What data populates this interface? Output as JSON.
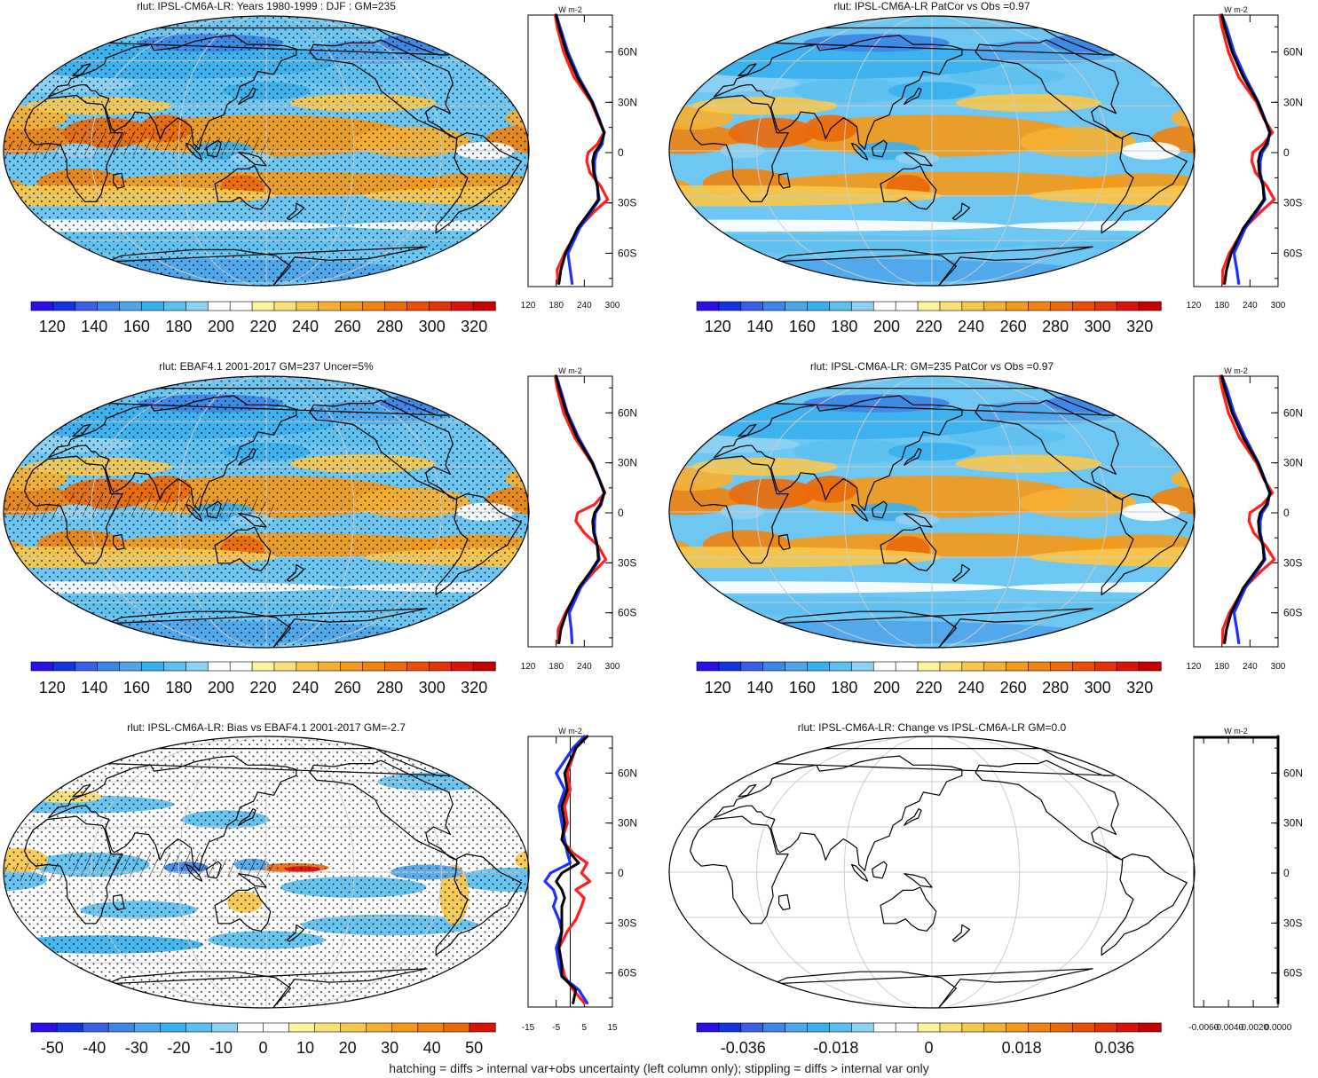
{
  "footer_note": "hatching = diffs > internal var+obs uncertainty (left column only); stippling = diffs > internal var only",
  "chart_data": [
    {
      "type": "heatmap",
      "title": "rlut: IPSL-CM6A-LR: Years 1980-1999 : DJF : GM=235",
      "colorbar_ticks": [
        "120",
        "140",
        "160",
        "180",
        "200",
        "220",
        "240",
        "260",
        "280",
        "300",
        "320"
      ],
      "colorbar_range": [
        110,
        330
      ],
      "zonal_profile": {
        "type": "line",
        "unit_label": "W m-2",
        "xticks": [
          "120",
          "180",
          "240",
          "300"
        ],
        "xlim": [
          120,
          300
        ],
        "yticks": [
          "60N",
          "30N",
          "0",
          "30S",
          "60S"
        ],
        "series": [
          {
            "name": "red",
            "color": "#ff1f1f",
            "lat": [
              82,
              75,
              60,
              45,
              30,
              20,
              12,
              5,
              0,
              -5,
              -12,
              -20,
              -28,
              -35,
              -45,
              -60,
              -70,
              -78
            ],
            "values": [
              178,
              182,
              196,
              218,
              255,
              270,
              282,
              268,
              248,
              245,
              252,
              275,
              290,
              262,
              228,
              198,
              182,
              184
            ]
          },
          {
            "name": "blue",
            "color": "#1f2fff",
            "lat": [
              82,
              75,
              60,
              45,
              30,
              20,
              12,
              5,
              0,
              -5,
              -12,
              -20,
              -28,
              -35,
              -45,
              -60,
              -70,
              -78
            ],
            "values": [
              180,
              188,
              205,
              228,
              258,
              272,
              282,
              278,
              266,
              262,
              262,
              268,
              272,
              255,
              230,
              205,
              210,
              214
            ]
          },
          {
            "name": "black",
            "color": "#000000",
            "lat": [
              82,
              75,
              60,
              45,
              30,
              20,
              12,
              5,
              0,
              -5,
              -12,
              -20,
              -28,
              -35,
              -45,
              -60,
              -70,
              -78
            ],
            "values": [
              180,
              186,
              202,
              225,
              257,
              271,
              283,
              275,
              262,
              258,
              260,
              268,
              270,
              252,
              226,
              200,
              190,
              186
            ]
          }
        ]
      }
    },
    {
      "type": "heatmap",
      "title": "rlut: IPSL-CM6A-LR PatCor vs Obs =0.97",
      "colorbar_ticks": [
        "120",
        "140",
        "160",
        "180",
        "200",
        "220",
        "240",
        "260",
        "280",
        "300",
        "320"
      ],
      "colorbar_range": [
        110,
        330
      ],
      "zonal_profile": {
        "type": "line",
        "unit_label": "W m-2",
        "xticks": [
          "120",
          "180",
          "240",
          "300"
        ],
        "xlim": [
          120,
          300
        ],
        "yticks": [
          "60N",
          "30N",
          "0",
          "30S",
          "60S"
        ],
        "series": [
          {
            "name": "red",
            "color": "#ff1f1f",
            "lat": [
              82,
              75,
              60,
              45,
              30,
              20,
              12,
              5,
              0,
              -5,
              -12,
              -20,
              -28,
              -35,
              -45,
              -60,
              -70,
              -78
            ],
            "values": [
              176,
              180,
              194,
              216,
              254,
              270,
              288,
              268,
              246,
              244,
              252,
              276,
              292,
              264,
              228,
              196,
              182,
              182
            ]
          },
          {
            "name": "blue",
            "color": "#1f2fff",
            "lat": [
              82,
              75,
              60,
              45,
              30,
              20,
              12,
              5,
              0,
              -5,
              -12,
              -20,
              -28,
              -35,
              -45,
              -60,
              -70,
              -78
            ],
            "values": [
              180,
              190,
              206,
              230,
              258,
              272,
              282,
              278,
              266,
              262,
              262,
              268,
              272,
              255,
              230,
              206,
              212,
              216
            ]
          },
          {
            "name": "black",
            "color": "#000000",
            "lat": [
              82,
              75,
              60,
              45,
              30,
              20,
              12,
              5,
              0,
              -5,
              -12,
              -20,
              -28,
              -35,
              -45,
              -60,
              -70,
              -78
            ],
            "values": [
              180,
              186,
              202,
              226,
              257,
              271,
              283,
              275,
              262,
              258,
              260,
              268,
              270,
              252,
              226,
              200,
              190,
              186
            ]
          }
        ]
      }
    },
    {
      "type": "heatmap",
      "title": "rlut: EBAF4.1 2001-2017 GM=237 Uncer=5%",
      "colorbar_ticks": [
        "120",
        "140",
        "160",
        "180",
        "200",
        "220",
        "240",
        "260",
        "280",
        "300",
        "320"
      ],
      "colorbar_range": [
        110,
        330
      ],
      "zonal_profile": {
        "type": "line",
        "unit_label": "W m-2",
        "xticks": [
          "120",
          "180",
          "240",
          "300"
        ],
        "xlim": [
          120,
          300
        ],
        "yticks": [
          "60N",
          "30N",
          "0",
          "30S",
          "60S"
        ],
        "series": [
          {
            "name": "red",
            "color": "#ff1f1f",
            "lat": [
              82,
              75,
              60,
              45,
              30,
              20,
              12,
              5,
              0,
              -5,
              -12,
              -20,
              -28,
              -35,
              -45,
              -60,
              -70,
              -78
            ],
            "values": [
              178,
              182,
              196,
              220,
              256,
              272,
              284,
              262,
              226,
              222,
              240,
              270,
              286,
              262,
              230,
              200,
              184,
              184
            ]
          },
          {
            "name": "blue",
            "color": "#1f2fff",
            "lat": [
              82,
              75,
              60,
              45,
              30,
              20,
              12,
              5,
              0,
              -5,
              -12,
              -20,
              -28,
              -35,
              -45,
              -60,
              -70,
              -78
            ],
            "values": [
              180,
              188,
              204,
              228,
              258,
              272,
              282,
              276,
              264,
              262,
              262,
              268,
              272,
              256,
              232,
              208,
              212,
              214
            ]
          },
          {
            "name": "black",
            "color": "#000000",
            "lat": [
              82,
              75,
              60,
              45,
              30,
              20,
              12,
              5,
              0,
              -5,
              -12,
              -20,
              -28,
              -35,
              -45,
              -60,
              -70,
              -78
            ],
            "values": [
              180,
              186,
              202,
              225,
              257,
              272,
              283,
              274,
              262,
              258,
              260,
              268,
              270,
              254,
              228,
              202,
              190,
              186
            ]
          }
        ]
      }
    },
    {
      "type": "heatmap",
      "title": "rlut: IPSL-CM6A-LR: GM=235 PatCor vs Obs =0.97",
      "colorbar_ticks": [
        "120",
        "140",
        "160",
        "180",
        "200",
        "220",
        "240",
        "260",
        "280",
        "300",
        "320"
      ],
      "colorbar_range": [
        110,
        330
      ],
      "zonal_profile": {
        "type": "line",
        "unit_label": "W m-2",
        "xticks": [
          "120",
          "180",
          "240",
          "300"
        ],
        "xlim": [
          120,
          300
        ],
        "yticks": [
          "60N",
          "30N",
          "0",
          "30S",
          "60S"
        ],
        "series": [
          {
            "name": "red",
            "color": "#ff1f1f",
            "lat": [
              82,
              75,
              60,
              45,
              30,
              20,
              12,
              5,
              0,
              -5,
              -12,
              -20,
              -28,
              -35,
              -45,
              -60,
              -70,
              -78
            ],
            "values": [
              176,
              180,
              194,
              218,
              254,
              270,
              288,
              266,
              240,
              238,
              248,
              274,
              292,
              264,
              228,
              196,
              182,
              182
            ]
          },
          {
            "name": "blue",
            "color": "#1f2fff",
            "lat": [
              82,
              75,
              60,
              45,
              30,
              20,
              12,
              5,
              0,
              -5,
              -12,
              -20,
              -28,
              -35,
              -45,
              -60,
              -70,
              -78
            ],
            "values": [
              180,
              190,
              206,
              230,
              258,
              272,
              282,
              278,
              266,
              262,
              262,
              268,
              272,
              255,
              230,
              206,
              212,
              216
            ]
          },
          {
            "name": "black",
            "color": "#000000",
            "lat": [
              82,
              75,
              60,
              45,
              30,
              20,
              12,
              5,
              0,
              -5,
              -12,
              -20,
              -28,
              -35,
              -45,
              -60,
              -70,
              -78
            ],
            "values": [
              180,
              186,
              202,
              226,
              257,
              271,
              283,
              275,
              262,
              258,
              260,
              268,
              270,
              252,
              226,
              200,
              190,
              186
            ]
          }
        ]
      }
    },
    {
      "type": "heatmap",
      "title": "rlut: IPSL-CM6A-LR: Bias vs EBAF4.1 2001-2017 GM=-2.7",
      "colorbar_ticks": [
        "-50",
        "-40",
        "-30",
        "-20",
        "-10",
        "0",
        "10",
        "20",
        "30",
        "40",
        "50"
      ],
      "colorbar_range": [
        -55,
        55
      ],
      "zonal_profile": {
        "type": "line",
        "unit_label": "W m-2",
        "xticks": [
          "-15",
          "-5",
          "5",
          "15"
        ],
        "xlim": [
          -15,
          15
        ],
        "yticks": [
          "60N",
          "30N",
          "0",
          "30S",
          "60S"
        ],
        "series": [
          {
            "name": "red",
            "color": "#ff1f1f",
            "lat": [
              82,
              75,
              60,
              50,
              40,
              30,
              20,
              12,
              6,
              0,
              -5,
              -10,
              -15,
              -20,
              -28,
              -35,
              -45,
              -55,
              -62,
              -70,
              -78
            ],
            "values": [
              6,
              2,
              -1,
              0,
              -2,
              -1,
              -3,
              1,
              6,
              4,
              7,
              2,
              5,
              4,
              2,
              -1,
              -4,
              -3,
              -2,
              1,
              5
            ]
          },
          {
            "name": "blue",
            "color": "#1f2fff",
            "lat": [
              82,
              75,
              60,
              50,
              40,
              30,
              20,
              12,
              6,
              0,
              -5,
              -10,
              -15,
              -20,
              -28,
              -35,
              -45,
              -55,
              -62,
              -70,
              -78
            ],
            "values": [
              5,
              1,
              -5,
              -2,
              -4,
              -3,
              -2,
              -1,
              0,
              -7,
              -9,
              -6,
              -5,
              -6,
              -4,
              -3,
              -5,
              -4,
              -3,
              3,
              6
            ]
          },
          {
            "name": "black",
            "color": "#000000",
            "lat": [
              82,
              75,
              60,
              50,
              40,
              30,
              20,
              12,
              6,
              0,
              -5,
              -10,
              -15,
              -20,
              -28,
              -35,
              -45,
              -55,
              -62,
              -70,
              -78
            ],
            "values": [
              6,
              2,
              -2,
              -1,
              -3,
              -2,
              -3,
              0,
              3,
              -3,
              -5,
              -3,
              -2,
              -3,
              -3,
              -3,
              -4,
              -3,
              -3,
              2,
              1
            ]
          }
        ]
      }
    },
    {
      "type": "heatmap",
      "title": "rlut: IPSL-CM6A-LR: Change vs IPSL-CM6A-LR GM=0.0",
      "colorbar_ticks": [
        "-0.036",
        "-0.018",
        "0",
        "0.018",
        "0.036"
      ],
      "colorbar_range": [
        -0.045,
        0.045
      ],
      "zonal_profile": {
        "type": "line",
        "unit_label": "W m-2",
        "xticks": [
          "-0.0060",
          "-0.0040",
          "-0.0020",
          "0.0000"
        ],
        "xlim": [
          -0.0068,
          0
        ],
        "yticks": [
          "60N",
          "30N",
          "0",
          "30S",
          "60S"
        ],
        "series": [
          {
            "name": "black",
            "color": "#000000",
            "lat": [
              82,
              60,
              30,
              0,
              -30,
              -60,
              -78
            ],
            "values": [
              0,
              0,
              0,
              0,
              0,
              0,
              0
            ]
          }
        ]
      }
    }
  ]
}
